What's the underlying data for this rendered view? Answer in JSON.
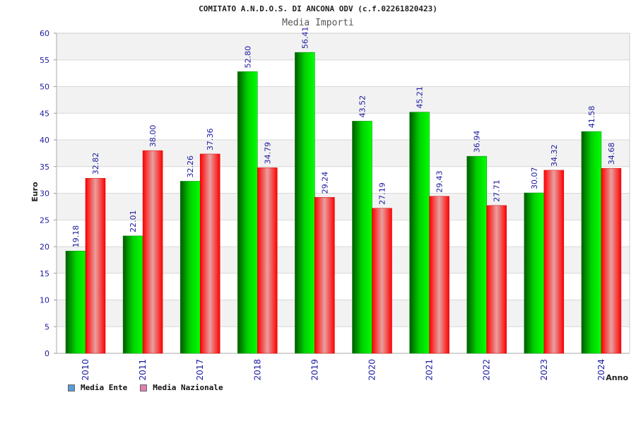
{
  "chart_data": {
    "type": "bar",
    "title": "COMITATO A.N.D.O.S. DI ANCONA ODV (c.f.02261820423)",
    "subtitle": "Media Importi",
    "xlabel": "Anno",
    "ylabel": "Euro",
    "categories": [
      "2010",
      "2011",
      "2017",
      "2018",
      "2019",
      "2020",
      "2021",
      "2022",
      "2023",
      "2024"
    ],
    "series": [
      {
        "name": "Media Ente",
        "values": [
          19.18,
          22.01,
          32.26,
          52.8,
          56.41,
          43.52,
          45.21,
          36.94,
          30.07,
          41.58
        ],
        "labels": [
          "19.18",
          "22.01",
          "32.26",
          "52.80",
          "56.41",
          "43.52",
          "45.21",
          "36.94",
          "30.07",
          "41.58"
        ],
        "color": "#00b400",
        "legend_color": "#5b9bd5"
      },
      {
        "name": "Media Nazionale",
        "values": [
          32.82,
          38.0,
          37.36,
          34.79,
          29.24,
          27.19,
          29.43,
          27.71,
          34.32,
          34.68
        ],
        "labels": [
          "32.82",
          "38.00",
          "37.36",
          "34.79",
          "29.24",
          "27.19",
          "29.43",
          "27.71",
          "34.32",
          "34.68"
        ],
        "color": "#f00000",
        "legend_color": "#e07fb0"
      }
    ],
    "ylim": [
      0,
      60
    ],
    "yticks": [
      "0",
      "5",
      "10",
      "15",
      "20",
      "25",
      "30",
      "35",
      "40",
      "45",
      "50",
      "55",
      "60"
    ],
    "grid": true,
    "legend_position": "bottom-left"
  }
}
